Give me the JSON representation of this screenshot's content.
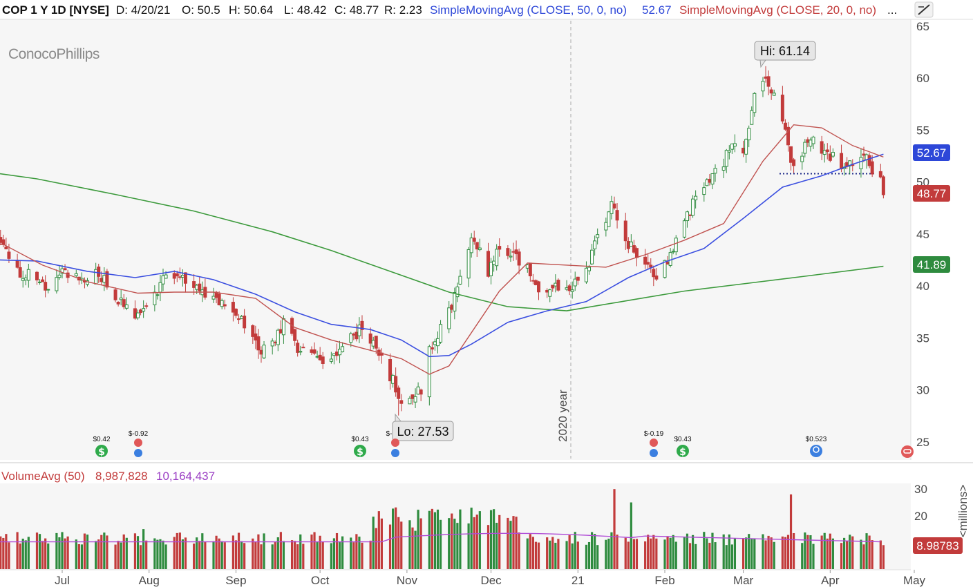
{
  "header": {
    "symbol": "COP 1 Y 1D [NYSE]",
    "date": "D: 4/20/21",
    "open": "O: 50.5",
    "high": "H: 50.64",
    "low": "L: 48.42",
    "close": "C: 48.77",
    "range": "R: 2.23",
    "sma50_label": "SimpleMovingAvg (CLOSE, 50, 0, no)",
    "sma50_value": "52.67",
    "sma20_label": "SimpleMovingAvg (CLOSE, 20, 0, no)",
    "more": "..."
  },
  "logo": "ConocoPhillips",
  "year_marker": "2020 year",
  "callouts": {
    "high": "Hi: 61.14",
    "low": "Lo: 27.53"
  },
  "price_tags": {
    "sma50": "52.67",
    "last": "48.77",
    "sma200": "41.89"
  },
  "volume_header": {
    "label": "VolumeAvg (50)",
    "volume": "8,987,828",
    "avg": "10,164,437"
  },
  "volume_tag": "8.98783",
  "volume_unit": "<millions>",
  "events": {
    "jul_div": "$0.42",
    "jul_earn": "$-0.92",
    "oct_div": "$0.43",
    "oct_earn": "$-",
    "feb_earn": "$-0.19",
    "feb_div": "$0.43",
    "apr_est": "$0.523"
  },
  "colors": {
    "up": "#2e8b3e",
    "down": "#c23b3b",
    "sma20": "#c0524f",
    "sma50": "#3a4ee0",
    "sma200": "#3c9a3c",
    "vol_avg": "#b04cd6",
    "header_blue": "#2d47d8"
  },
  "chart_data": {
    "type": "candlestick",
    "title": "COP 1 Y 1D [NYSE]",
    "y_axis": {
      "ticks": [
        25,
        30,
        35,
        40,
        45,
        50,
        55,
        60,
        65
      ],
      "range": [
        23.5,
        65.5
      ]
    },
    "x_axis": {
      "labels": [
        "Jul",
        "Aug",
        "Sep",
        "Oct",
        "Nov",
        "Dec",
        "21",
        "Feb",
        "Mar",
        "Apr",
        "May"
      ]
    },
    "last_bar": {
      "date": "4/20/21",
      "open": 50.5,
      "high": 50.64,
      "low": 48.42,
      "close": 48.77
    },
    "high": 61.14,
    "low": 27.53,
    "sma50_last": 52.67,
    "sma200_last": 41.89,
    "support_level": 50.8,
    "close_path": [
      [
        "2020-05-21",
        44.5
      ],
      [
        "2020-06-01",
        44.5
      ],
      [
        "2020-06-05",
        47.0
      ],
      [
        "2020-06-10",
        43.5
      ],
      [
        "2020-06-15",
        41.2
      ],
      [
        "2020-06-19",
        41.4
      ],
      [
        "2020-06-25",
        39.5
      ],
      [
        "2020-07-01",
        41.5
      ],
      [
        "2020-07-08",
        40.5
      ],
      [
        "2020-07-13",
        41.3
      ],
      [
        "2020-07-17",
        40.4
      ],
      [
        "2020-07-22",
        38.3
      ],
      [
        "2020-07-28",
        37.3
      ],
      [
        "2020-08-03",
        39.0
      ],
      [
        "2020-08-07",
        41.5
      ],
      [
        "2020-08-14",
        40.8
      ],
      [
        "2020-08-21",
        39.2
      ],
      [
        "2020-08-28",
        38.4
      ],
      [
        "2020-09-04",
        36.5
      ],
      [
        "2020-09-10",
        33.7
      ],
      [
        "2020-09-15",
        35.0
      ],
      [
        "2020-09-18",
        36.5
      ],
      [
        "2020-09-23",
        34.0
      ],
      [
        "2020-09-29",
        33.8
      ],
      [
        "2020-10-02",
        32.6
      ],
      [
        "2020-10-06",
        33.6
      ],
      [
        "2020-10-12",
        35.2
      ],
      [
        "2020-10-16",
        35.8
      ],
      [
        "2020-10-22",
        33.8
      ],
      [
        "2020-10-27",
        30.8
      ],
      [
        "2020-10-30",
        28.5
      ],
      [
        "2020-11-03",
        29.4
      ],
      [
        "2020-11-06",
        30.0
      ],
      [
        "2020-11-09",
        34.0
      ],
      [
        "2020-11-13",
        35.7
      ],
      [
        "2020-11-18",
        38.8
      ],
      [
        "2020-11-24",
        45.0
      ],
      [
        "2020-11-30",
        41.5
      ],
      [
        "2020-12-04",
        44.0
      ],
      [
        "2020-12-09",
        43.0
      ],
      [
        "2020-12-14",
        41.5
      ],
      [
        "2020-12-18",
        40.0
      ],
      [
        "2020-12-24",
        39.8
      ],
      [
        "2020-12-30",
        40.2
      ],
      [
        "2021-01-05",
        42.0
      ],
      [
        "2021-01-08",
        45.0
      ],
      [
        "2021-01-13",
        47.8
      ],
      [
        "2021-01-19",
        44.0
      ],
      [
        "2021-01-26",
        42.0
      ],
      [
        "2021-01-29",
        40.6
      ],
      [
        "2021-02-03",
        43.0
      ],
      [
        "2021-02-08",
        46.5
      ],
      [
        "2021-02-12",
        48.3
      ],
      [
        "2021-02-17",
        50.0
      ],
      [
        "2021-02-22",
        52.0
      ],
      [
        "2021-02-25",
        54.0
      ],
      [
        "2021-03-01",
        52.2
      ],
      [
        "2021-03-05",
        58.5
      ],
      [
        "2021-03-09",
        60.0
      ],
      [
        "2021-03-12",
        58.0
      ],
      [
        "2021-03-16",
        54.5
      ],
      [
        "2021-03-19",
        51.0
      ],
      [
        "2021-03-23",
        53.5
      ],
      [
        "2021-03-26",
        54.0
      ],
      [
        "2021-03-31",
        52.6
      ],
      [
        "2021-04-05",
        51.8
      ],
      [
        "2021-04-08",
        51.8
      ],
      [
        "2021-04-13",
        52.8
      ],
      [
        "2021-04-16",
        51.2
      ],
      [
        "2021-04-19",
        50.6
      ],
      [
        "2021-04-20",
        48.77
      ]
    ],
    "sma20_path": [
      [
        "2020-05-21",
        43.3
      ],
      [
        "2020-06-10",
        44.0
      ],
      [
        "2020-06-24",
        42.0
      ],
      [
        "2020-07-10",
        40.4
      ],
      [
        "2020-07-28",
        39.3
      ],
      [
        "2020-08-10",
        39.4
      ],
      [
        "2020-08-24",
        39.4
      ],
      [
        "2020-09-08",
        38.8
      ],
      [
        "2020-09-22",
        36.0
      ],
      [
        "2020-10-05",
        34.8
      ],
      [
        "2020-10-19",
        33.8
      ],
      [
        "2020-10-30",
        33.0
      ],
      [
        "2020-11-09",
        31.5
      ],
      [
        "2020-11-16",
        32.3
      ],
      [
        "2020-11-24",
        35.5
      ],
      [
        "2020-12-04",
        39.5
      ],
      [
        "2020-12-14",
        42.2
      ],
      [
        "2020-12-28",
        42.0
      ],
      [
        "2021-01-11",
        41.8
      ],
      [
        "2021-01-25",
        43.0
      ],
      [
        "2021-02-08",
        44.4
      ],
      [
        "2021-02-22",
        46.0
      ],
      [
        "2021-03-08",
        52.0
      ],
      [
        "2021-03-19",
        55.5
      ],
      [
        "2021-03-29",
        55.2
      ],
      [
        "2021-04-09",
        53.5
      ],
      [
        "2021-04-20",
        52.4
      ]
    ],
    "sma50_path": [
      [
        "2020-05-21",
        40.5
      ],
      [
        "2020-06-08",
        42.5
      ],
      [
        "2020-06-22",
        42.4
      ],
      [
        "2020-07-10",
        41.4
      ],
      [
        "2020-07-27",
        40.8
      ],
      [
        "2020-08-10",
        41.4
      ],
      [
        "2020-08-24",
        40.6
      ],
      [
        "2020-09-08",
        39.2
      ],
      [
        "2020-09-22",
        37.5
      ],
      [
        "2020-10-05",
        36.3
      ],
      [
        "2020-10-19",
        35.8
      ],
      [
        "2020-10-30",
        34.8
      ],
      [
        "2020-11-09",
        33.2
      ],
      [
        "2020-11-16",
        33.3
      ],
      [
        "2020-11-24",
        34.4
      ],
      [
        "2020-12-07",
        36.5
      ],
      [
        "2020-12-21",
        37.6
      ],
      [
        "2021-01-04",
        38.5
      ],
      [
        "2021-01-19",
        40.8
      ],
      [
        "2021-02-01",
        42.3
      ],
      [
        "2021-02-15",
        43.6
      ],
      [
        "2021-03-01",
        46.5
      ],
      [
        "2021-03-15",
        49.5
      ],
      [
        "2021-03-29",
        50.6
      ],
      [
        "2021-04-09",
        51.7
      ],
      [
        "2021-04-20",
        52.67
      ]
    ],
    "sma200_path": [
      [
        "2020-05-21",
        51.5
      ],
      [
        "2020-06-22",
        50.3
      ],
      [
        "2020-07-20",
        48.8
      ],
      [
        "2020-08-17",
        47.2
      ],
      [
        "2020-09-14",
        45.2
      ],
      [
        "2020-10-05",
        43.4
      ],
      [
        "2020-10-26",
        41.4
      ],
      [
        "2020-11-16",
        39.4
      ],
      [
        "2020-12-07",
        38.0
      ],
      [
        "2020-12-28",
        37.6
      ],
      [
        "2021-01-19",
        38.6
      ],
      [
        "2021-02-08",
        39.5
      ],
      [
        "2021-03-01",
        40.2
      ],
      [
        "2021-03-22",
        40.9
      ],
      [
        "2021-04-20",
        41.89
      ]
    ],
    "volume": {
      "unit": "millions",
      "ticks": [
        10,
        20,
        30
      ],
      "last": 8.98783,
      "avg_last": 10.164437
    }
  }
}
